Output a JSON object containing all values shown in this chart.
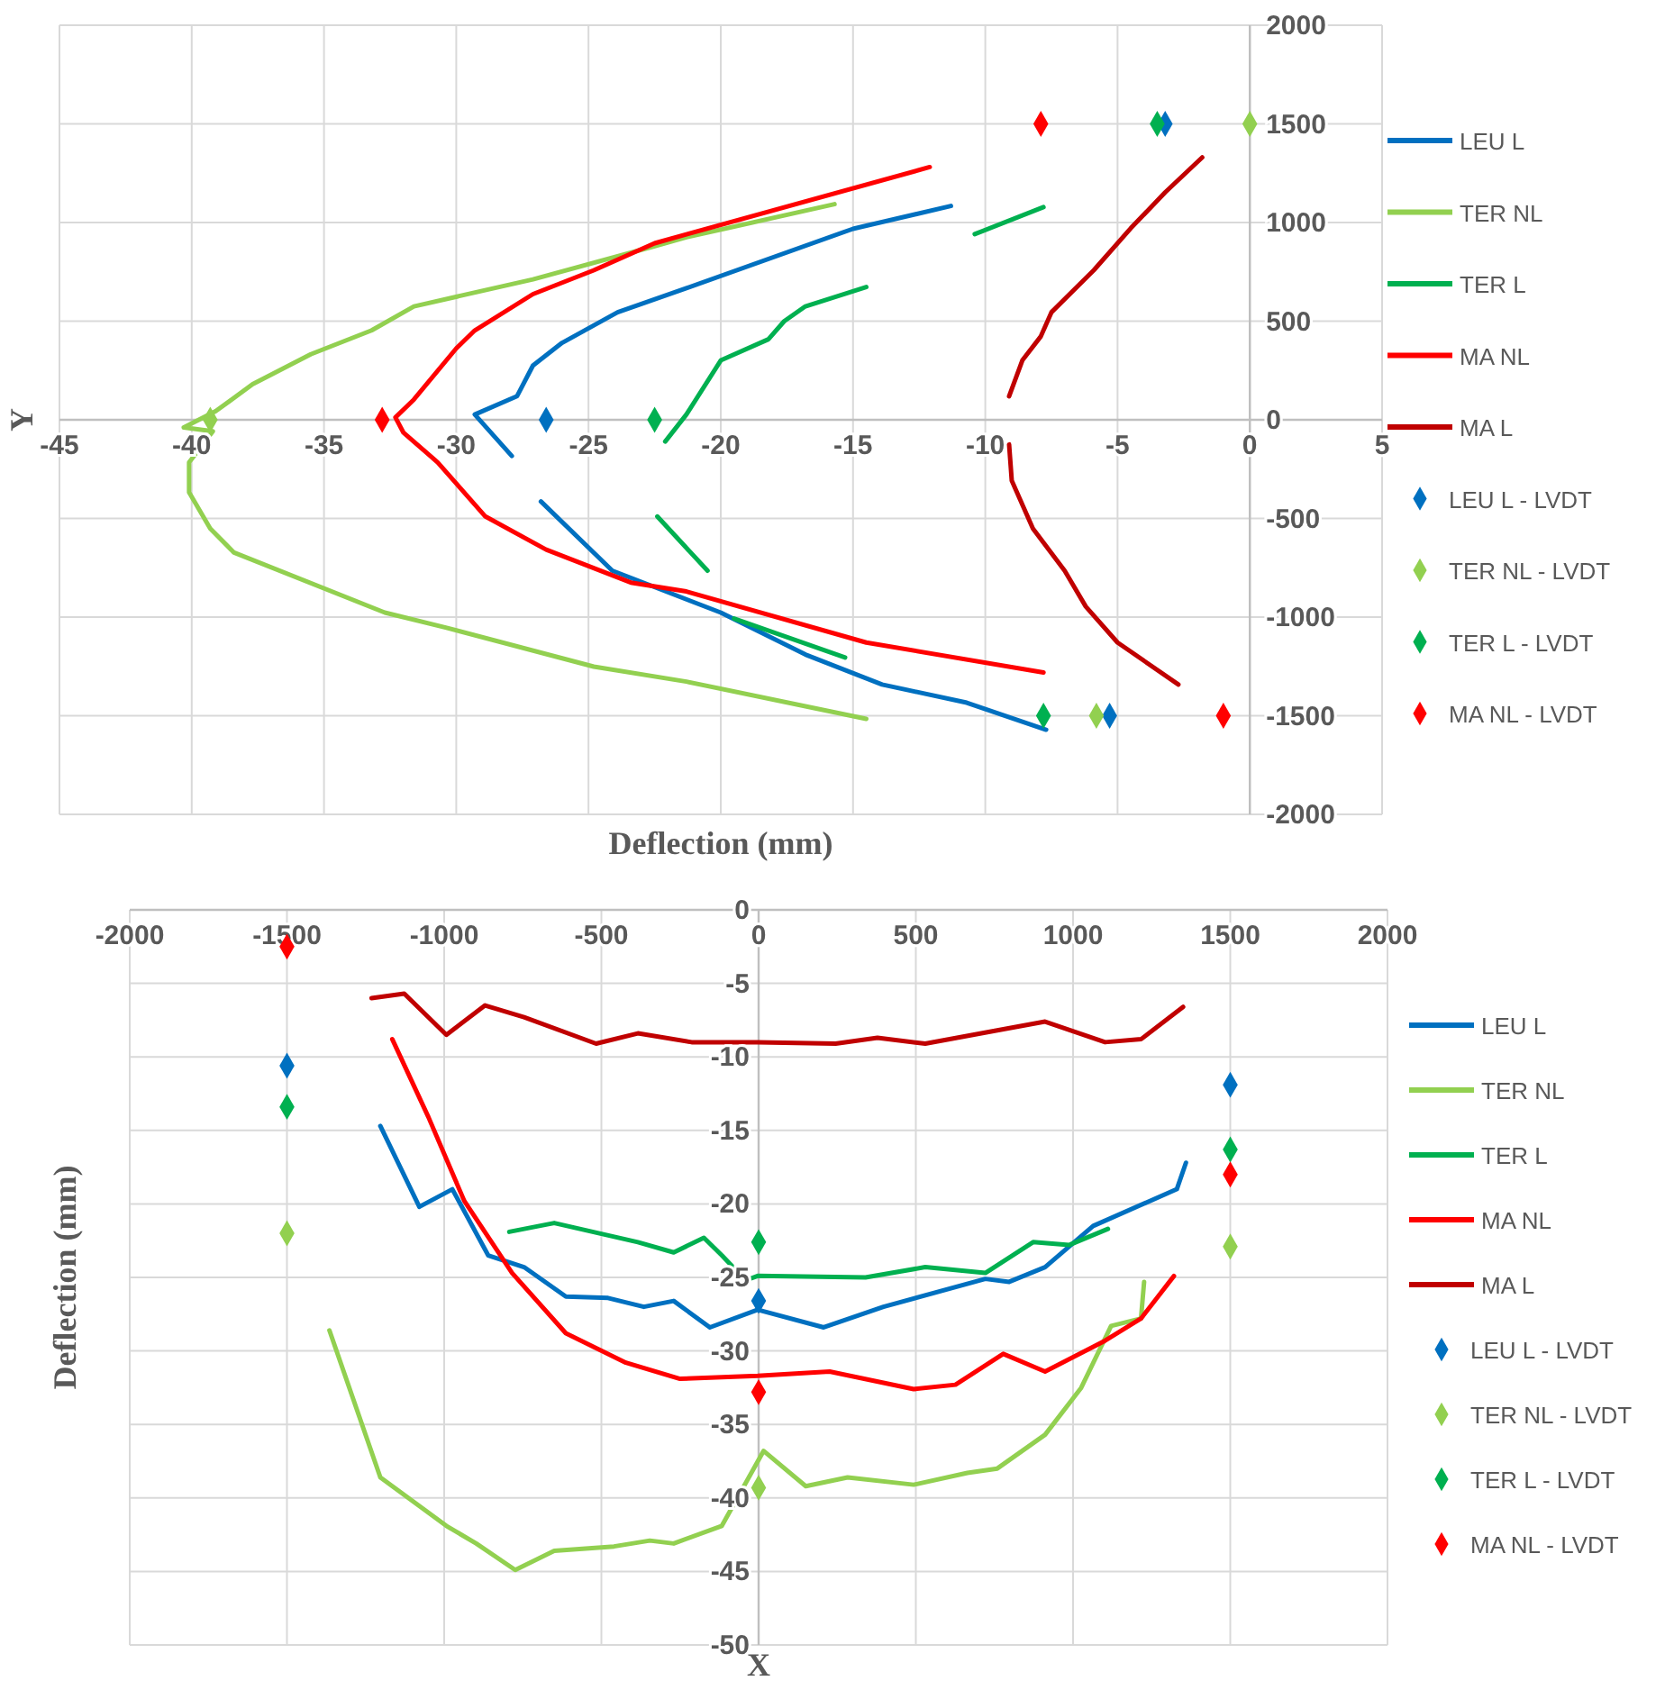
{
  "chart_data": [
    {
      "type": "line",
      "xlabel": "Deflection (mm)",
      "ylabel": "Y",
      "xlim": [
        -45,
        5
      ],
      "xticks": [
        -45,
        -40,
        -35,
        -30,
        -25,
        -20,
        -15,
        -10,
        -5,
        0,
        5
      ],
      "ylim": [
        -2000,
        2000
      ],
      "yticks": [
        -2000,
        -1500,
        -1000,
        -500,
        0,
        500,
        1000,
        1500,
        2000
      ],
      "grid": true,
      "legend": "right",
      "line_style": "solid",
      "series": [
        {
          "name": "LEU L",
          "color": "#0070c0",
          "x": [
            -27.9,
            -29.3,
            -27.7,
            -27.1,
            -26.0,
            -23.9,
            -21.3,
            -15.0,
            -11.3,
            null,
            -26.8,
            -24.1,
            -20.0,
            -16.8,
            -13.9,
            -10.7,
            -7.7
          ],
          "values": [
            -183,
            27,
            120,
            275,
            390,
            545,
            667,
            968,
            1084,
            null,
            -414,
            -765,
            -977,
            -1190,
            -1342,
            -1434,
            -1571
          ]
        },
        {
          "name": "TER NL",
          "color": "#92d050",
          "x": [
            -15.7,
            -21.3,
            -22.5,
            -27.1,
            -31.6,
            -33.2,
            -35.5,
            -37.7,
            -39.1,
            -40.3,
            -39.2,
            -40.1,
            -40.1,
            -39.3,
            -38.4,
            -32.7,
            -30.4,
            -24.8,
            -21.3,
            -14.5
          ],
          "values": [
            1093,
            925,
            880,
            712,
            575,
            453,
            332,
            180,
            43,
            -39,
            -58,
            -216,
            -368,
            -551,
            -673,
            -977,
            -1053,
            -1251,
            -1327,
            -1516
          ]
        },
        {
          "name": "TER L",
          "color": "#00b050",
          "x": [
            -22.1,
            -21.3,
            -20.0,
            -18.2,
            -17.6,
            -16.8,
            -14.5,
            null,
            -10.4,
            -7.8,
            null,
            -22.4,
            -20.5,
            null,
            -19.5,
            -15.3
          ],
          "values": [
            -110,
            27,
            301,
            408,
            500,
            575,
            673,
            null,
            941,
            1078,
            null,
            -490,
            -765,
            null,
            -1007,
            -1205
          ]
        },
        {
          "name": "MA NL",
          "color": "#ff0000",
          "x": [
            -12.1,
            -21.3,
            -22.5,
            -24.8,
            -27.1,
            -29.3,
            -30.0,
            -31.6,
            -32.3,
            -32.0,
            -30.7,
            -28.9,
            -26.6,
            -23.4,
            -21.3,
            -14.5,
            -7.8
          ],
          "values": [
            1281,
            940,
            895,
            758,
            637,
            453,
            362,
            103,
            12,
            -64,
            -216,
            -490,
            -658,
            -825,
            -870,
            -1129,
            -1281
          ]
        },
        {
          "name": "MA L",
          "color": "#c00000",
          "x": [
            -1.8,
            -3.2,
            -4.5,
            -5.9,
            -7.5,
            -7.9,
            -8.6,
            -9.1,
            null,
            -9.1,
            -9.0,
            -8.2,
            -7.0,
            -6.2,
            -5.0,
            -2.7
          ],
          "values": [
            1330,
            1153,
            971,
            758,
            545,
            423,
            301,
            119,
            null,
            -125,
            -308,
            -551,
            -765,
            -947,
            -1129,
            -1342
          ]
        },
        {
          "name": "LEU L - LVDT",
          "type": "scatter",
          "marker": "diamond",
          "color": "#0070c0",
          "x": [
            -26.6,
            -3.2,
            -5.3
          ],
          "values": [
            0,
            1500,
            -1500
          ]
        },
        {
          "name": "TER NL - LVDT",
          "type": "scatter",
          "marker": "diamond",
          "color": "#92d050",
          "x": [
            -39.3,
            0,
            -5.8
          ],
          "values": [
            0,
            1500,
            -1500
          ]
        },
        {
          "name": "TER L - LVDT",
          "type": "scatter",
          "marker": "diamond",
          "color": "#00b050",
          "x": [
            -22.5,
            -3.5,
            -7.8
          ],
          "values": [
            0,
            1500,
            -1500
          ]
        },
        {
          "name": "MA NL - LVDT",
          "type": "scatter",
          "marker": "diamond",
          "color": "#ff0000",
          "x": [
            -32.8,
            -7.9,
            -1.0
          ],
          "values": [
            0,
            1500,
            -1500
          ]
        }
      ]
    },
    {
      "type": "line",
      "xlabel": "X",
      "ylabel": "Deflection (mm)",
      "xlim": [
        -2000,
        2000
      ],
      "xticks": [
        -2000,
        -1500,
        -1000,
        -500,
        0,
        500,
        1000,
        1500,
        2000
      ],
      "ylim": [
        -50,
        0
      ],
      "yticks": [
        -50,
        -45,
        -40,
        -35,
        -30,
        -25,
        -20,
        -15,
        -10,
        -5,
        0
      ],
      "grid": true,
      "legend": "right",
      "line_style": "solid",
      "series": [
        {
          "name": "LEU L",
          "color": "#0070c0",
          "x": [
            -1203,
            -1079,
            -974,
            -860,
            -746,
            -613,
            -479,
            -365,
            -270,
            -155,
            -3,
            207,
            397,
            721,
            797,
            911,
            1064,
            1330,
            1359
          ],
          "values": [
            -14.7,
            -20.2,
            -19.0,
            -23.5,
            -24.3,
            -26.3,
            -26.4,
            -27.0,
            -26.6,
            -28.4,
            -27.2,
            -28.4,
            -27.0,
            -25.1,
            -25.3,
            -24.3,
            -21.5,
            -19.0,
            -17.2
          ]
        },
        {
          "name": "TER NL",
          "color": "#92d050",
          "x": [
            -1365,
            -1203,
            -993,
            -898,
            -774,
            -650,
            -460,
            -346,
            -270,
            -117,
            16,
            150,
            283,
            493,
            664,
            759,
            911,
            1026,
            1121,
            1216,
            1226
          ],
          "values": [
            -28.6,
            -38.6,
            -41.9,
            -43.1,
            -44.9,
            -43.6,
            -43.3,
            -42.9,
            -43.1,
            -41.9,
            -36.8,
            -39.2,
            -38.6,
            -39.1,
            -38.3,
            -38.0,
            -35.7,
            -32.5,
            -28.3,
            -27.8,
            -25.3
          ]
        },
        {
          "name": "TER L",
          "color": "#00b050",
          "x": [
            -793,
            -650,
            -384,
            -270,
            -174,
            -117,
            -41,
            -3,
            340,
            530,
            721,
            873,
            987,
            1111
          ],
          "values": [
            -21.9,
            -21.3,
            -22.6,
            -23.3,
            -22.3,
            -23.5,
            -25.2,
            -24.9,
            -25.0,
            -24.3,
            -24.7,
            -22.6,
            -22.8,
            -21.7
          ]
        },
        {
          "name": "MA NL",
          "color": "#ff0000",
          "x": [
            -1165,
            -1050,
            -936,
            -784,
            -613,
            -422,
            -250,
            -3,
            226,
            493,
            626,
            778,
            911,
            1102,
            1216,
            1321
          ],
          "values": [
            -8.8,
            -14.1,
            -19.8,
            -24.7,
            -28.8,
            -30.8,
            -31.9,
            -31.7,
            -31.4,
            -32.6,
            -32.3,
            -30.2,
            -31.4,
            -29.3,
            -27.8,
            -24.9
          ]
        },
        {
          "name": "MA L",
          "color": "#c00000",
          "x": [
            -1231,
            -1127,
            -993,
            -870,
            -746,
            -517,
            -384,
            -213,
            -3,
            245,
            378,
            530,
            759,
            911,
            1102,
            1216,
            1350
          ],
          "values": [
            -6.0,
            -5.7,
            -8.5,
            -6.5,
            -7.3,
            -9.1,
            -8.4,
            -9.0,
            -9.0,
            -9.1,
            -8.7,
            -9.1,
            -8.2,
            -7.6,
            -9.0,
            -8.8,
            -6.6
          ]
        },
        {
          "name": "LEU L - LVDT",
          "type": "scatter",
          "marker": "diamond",
          "color": "#0070c0",
          "x": [
            -1500,
            0,
            1500
          ],
          "values": [
            -10.6,
            -26.6,
            -11.9
          ]
        },
        {
          "name": "TER NL - LVDT",
          "type": "scatter",
          "marker": "diamond",
          "color": "#92d050",
          "x": [
            -1500,
            0,
            1500
          ],
          "values": [
            -22.0,
            -39.3,
            -22.9
          ]
        },
        {
          "name": "TER L - LVDT",
          "type": "scatter",
          "marker": "diamond",
          "color": "#00b050",
          "x": [
            -1500,
            0,
            1500
          ],
          "values": [
            -13.4,
            -22.6,
            -16.3
          ]
        },
        {
          "name": "MA NL - LVDT",
          "type": "scatter",
          "marker": "diamond",
          "color": "#ff0000",
          "x": [
            -1500,
            0,
            1500
          ],
          "values": [
            -2.5,
            -32.8,
            -18.0
          ]
        }
      ]
    }
  ]
}
